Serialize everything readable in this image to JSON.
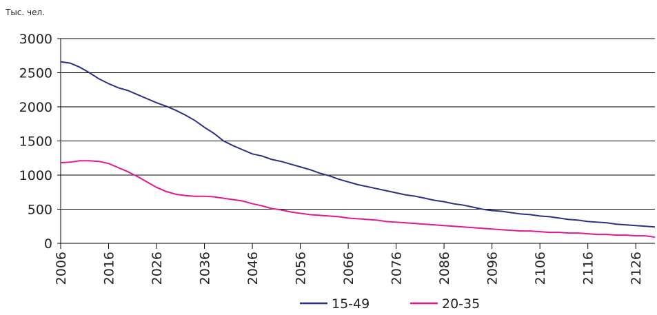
{
  "chart_data": {
    "type": "line",
    "y_label": "Тыс. чел.",
    "x": [
      2006,
      2008,
      2010,
      2012,
      2014,
      2016,
      2018,
      2020,
      2022,
      2024,
      2026,
      2028,
      2030,
      2032,
      2034,
      2036,
      2038,
      2040,
      2042,
      2044,
      2046,
      2048,
      2050,
      2052,
      2054,
      2056,
      2058,
      2060,
      2062,
      2064,
      2066,
      2068,
      2070,
      2072,
      2074,
      2076,
      2078,
      2080,
      2082,
      2084,
      2086,
      2088,
      2090,
      2092,
      2094,
      2096,
      2098,
      2100,
      2102,
      2104,
      2106,
      2108,
      2110,
      2112,
      2114,
      2116,
      2118,
      2120,
      2122,
      2124,
      2126,
      2128,
      2130
    ],
    "series": [
      {
        "name": "15-49",
        "color": "#2b2f86",
        "values": [
          2660,
          2640,
          2580,
          2500,
          2410,
          2340,
          2280,
          2240,
          2180,
          2120,
          2060,
          2010,
          1950,
          1880,
          1800,
          1700,
          1610,
          1500,
          1430,
          1370,
          1310,
          1280,
          1230,
          1200,
          1160,
          1120,
          1080,
          1030,
          990,
          940,
          900,
          860,
          830,
          800,
          770,
          740,
          710,
          690,
          660,
          630,
          610,
          580,
          560,
          530,
          500,
          480,
          470,
          450,
          430,
          420,
          400,
          390,
          370,
          350,
          340,
          320,
          310,
          300,
          280,
          270,
          260,
          250,
          240
        ]
      },
      {
        "name": "20-35",
        "color": "#e2168f",
        "values": [
          1180,
          1190,
          1210,
          1210,
          1200,
          1170,
          1110,
          1050,
          980,
          900,
          820,
          760,
          720,
          700,
          690,
          690,
          680,
          660,
          640,
          620,
          580,
          550,
          510,
          490,
          460,
          440,
          420,
          410,
          400,
          390,
          370,
          360,
          350,
          340,
          320,
          310,
          300,
          290,
          280,
          270,
          260,
          250,
          240,
          230,
          220,
          210,
          200,
          190,
          180,
          180,
          170,
          160,
          160,
          150,
          150,
          140,
          130,
          130,
          120,
          120,
          110,
          110,
          90
        ]
      }
    ],
    "xlim": [
      2006,
      2130
    ],
    "xticks": [
      2006,
      2016,
      2026,
      2036,
      2046,
      2056,
      2066,
      2076,
      2086,
      2096,
      2106,
      2116,
      2126
    ],
    "ylim": [
      0,
      3000
    ],
    "yticks": [
      0,
      500,
      1000,
      1500,
      2000,
      2500,
      3000
    ],
    "grid": true
  }
}
